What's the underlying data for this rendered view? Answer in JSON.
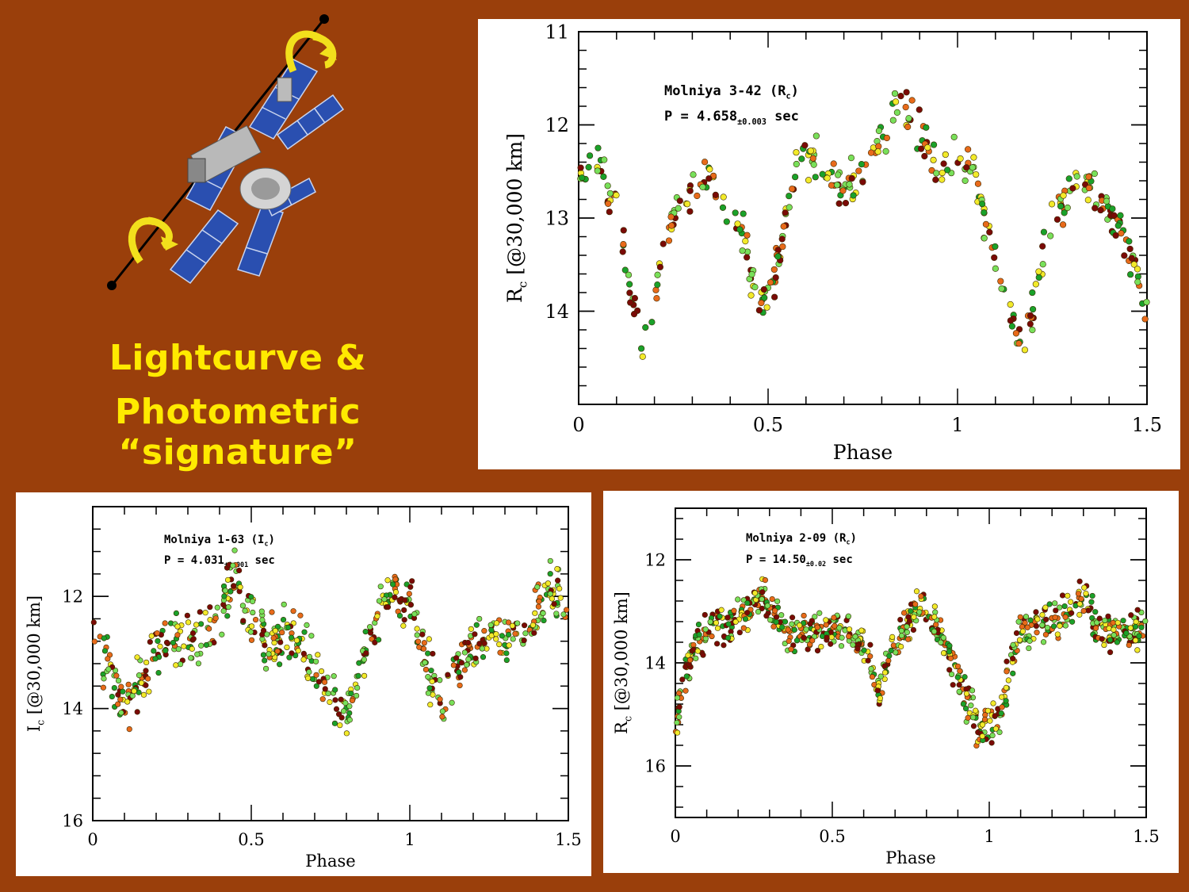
{
  "slide": {
    "title_line1": "Lightcurve &",
    "title_line2": "Photometric “signature”",
    "colors": {
      "background": "#9a3f0b",
      "title": "#ffea00",
      "arrow": "#f2e01c",
      "panel": "#2a4fb0"
    },
    "illustration": "rotating-satellite-icon"
  },
  "dot_colors": [
    "#7a0a06",
    "#e86a1a",
    "#f2ea2a",
    "#1aa12a",
    "#78e05a"
  ],
  "chart_data": [
    {
      "type": "scatter",
      "name": "top",
      "title": "Molniya 3-42 (R",
      "title_sub": "c",
      "title_end": ")",
      "period_prefix": "P = 4.658",
      "period_sub": "±0.003",
      "period_unit": " sec",
      "xlabel": "Phase",
      "ylabel_main": "R",
      "ylabel_sub": "c",
      "ylabel_rest": " [@30,000 km]",
      "xlim": [
        0,
        1.5
      ],
      "ylim": [
        11,
        15.0
      ],
      "y_inverted": true,
      "xticks": [
        "0",
        "0.5",
        "1",
        "1.5"
      ],
      "yticks": [
        "11",
        "12",
        "13",
        "14"
      ],
      "x_minor_step": 0.1,
      "y_minor_step": 0.2,
      "lightcurve_phase": [
        0,
        0.05,
        0.1,
        0.17,
        0.25,
        0.33,
        0.36,
        0.43,
        0.48,
        0.52,
        0.58,
        0.63,
        0.7,
        0.77,
        0.85,
        0.9,
        0.95,
        1.0,
        1.05,
        1.1,
        1.17,
        1.25,
        1.33,
        1.36,
        1.43,
        1.5
      ],
      "lightcurve_mag": [
        12.5,
        12.4,
        12.9,
        14.4,
        13.0,
        12.55,
        12.65,
        13.1,
        14.0,
        13.6,
        12.4,
        12.35,
        12.7,
        12.4,
        11.75,
        12.1,
        12.5,
        12.35,
        12.6,
        13.5,
        14.4,
        13.0,
        12.55,
        12.65,
        13.1,
        14.0
      ],
      "scatter_amp": 0.22
    },
    {
      "type": "scatter",
      "name": "bottom-left",
      "title": "Molniya 1-63 (I",
      "title_sub": "c",
      "title_end": ")",
      "period_prefix": "P = 4.031",
      "period_sub": "±0.001",
      "period_unit": " sec",
      "xlabel": "Phase",
      "ylabel_main": "I",
      "ylabel_sub": "c",
      "ylabel_rest": " [@30,000 km]",
      "xlim": [
        0,
        1.5
      ],
      "ylim": [
        10.4,
        16
      ],
      "y_inverted": true,
      "xticks": [
        "0",
        "0.5",
        "1",
        "1.5"
      ],
      "yticks": [
        "12",
        "14",
        "16"
      ],
      "x_minor_step": 0.1,
      "y_minor_step": 0.4,
      "lightcurve_phase": [
        0,
        0.05,
        0.1,
        0.15,
        0.2,
        0.25,
        0.3,
        0.35,
        0.4,
        0.45,
        0.5,
        0.55,
        0.6,
        0.65,
        0.7,
        0.75,
        0.8,
        0.85,
        0.9,
        0.95,
        1.0,
        1.05,
        1.1,
        1.15,
        1.2,
        1.25,
        1.3,
        1.35,
        1.4,
        1.45,
        1.5
      ],
      "lightcurve_mag": [
        12.6,
        13.2,
        14.0,
        13.5,
        12.9,
        12.7,
        12.8,
        12.7,
        12.3,
        11.7,
        12.4,
        12.9,
        12.7,
        12.8,
        13.2,
        13.8,
        14.2,
        13.2,
        12.2,
        11.9,
        12.1,
        13.1,
        14.0,
        13.4,
        12.9,
        12.7,
        12.8,
        12.7,
        12.3,
        11.8,
        12.1
      ],
      "scatter_amp": 0.45
    },
    {
      "type": "scatter",
      "name": "bottom-right",
      "title": "Molniya 2-09 (R",
      "title_sub": "c",
      "title_end": ")",
      "period_prefix": "P = 14.50",
      "period_sub": "±0.02",
      "period_unit": " sec",
      "xlabel": "Phase",
      "ylabel_main": "R",
      "ylabel_sub": "c",
      "ylabel_rest": " [@30,000 km]",
      "xlim": [
        0,
        1.5
      ],
      "ylim": [
        11.0,
        17.0
      ],
      "y_inverted": true,
      "xticks": [
        "0",
        "0.5",
        "1",
        "1.5"
      ],
      "yticks": [
        "12",
        "14",
        "16"
      ],
      "x_minor_step": 0.1,
      "y_minor_step": 0.4,
      "lightcurve_phase": [
        0,
        0.03,
        0.06,
        0.1,
        0.2,
        0.28,
        0.35,
        0.45,
        0.55,
        0.6,
        0.65,
        0.7,
        0.78,
        0.85,
        0.92,
        0.97,
        1.03,
        1.06,
        1.1,
        1.2,
        1.3,
        1.35,
        1.45,
        1.5
      ],
      "lightcurve_mag": [
        15.3,
        14.3,
        13.7,
        13.3,
        13.2,
        12.7,
        13.4,
        13.4,
        13.3,
        13.7,
        14.6,
        13.6,
        12.8,
        13.5,
        14.6,
        15.3,
        15.1,
        14.3,
        13.4,
        13.2,
        12.7,
        13.4,
        13.4,
        13.3
      ],
      "scatter_amp": 0.35
    }
  ]
}
